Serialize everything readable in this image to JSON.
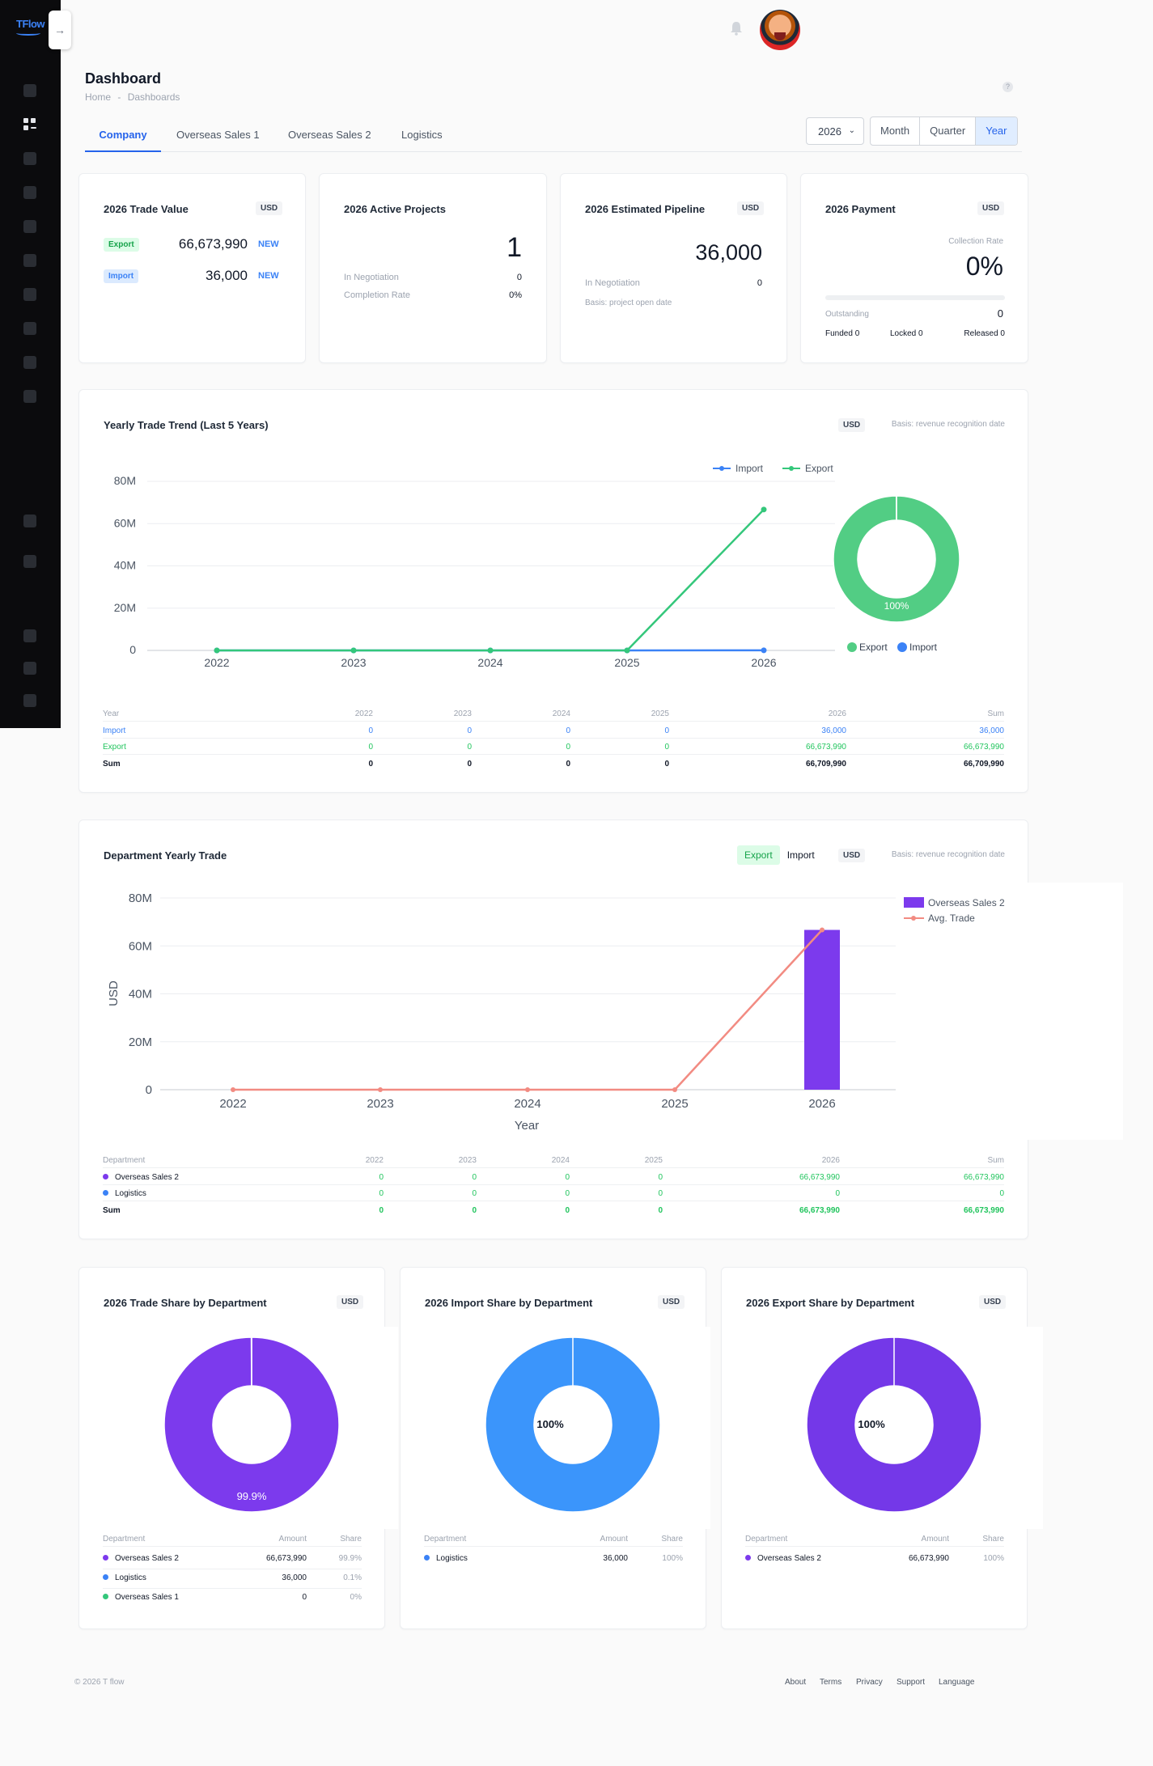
{
  "app": {
    "logo": "TFlow",
    "toggle_icon": "arrow-right-icon"
  },
  "header": {
    "title": "Dashboard",
    "breadcrumb": [
      "Home",
      "Dashboards"
    ]
  },
  "tabs": [
    "Company",
    "Overseas Sales 1",
    "Overseas Sales 2",
    "Logistics"
  ],
  "controls": {
    "year": "2026",
    "periods": [
      "Month",
      "Quarter",
      "Year"
    ],
    "selected_period": "Year"
  },
  "cards": {
    "trade_value": {
      "title": "2026 Trade Value",
      "currency": "USD",
      "rows": [
        {
          "label": "Export",
          "value": "66,673,990",
          "tag": "NEW"
        },
        {
          "label": "Import",
          "value": "36,000",
          "tag": "NEW"
        }
      ]
    },
    "active_projects": {
      "title": "2026 Active Projects",
      "count": "1",
      "rows": [
        {
          "label": "In Negotiation",
          "value": "0"
        },
        {
          "label": "Completion Rate",
          "value": "0%"
        }
      ]
    },
    "pipeline": {
      "title": "2026 Estimated Pipeline",
      "currency": "USD",
      "value": "36,000",
      "row_label": "In Negotiation",
      "row_value": "0",
      "note": "Basis: project open date"
    },
    "payment": {
      "title": "2026 Payment",
      "currency": "USD",
      "rate_label": "Collection Rate",
      "rate": "0%",
      "outstanding_label": "Outstanding",
      "outstanding": "0",
      "funded": "Funded 0",
      "locked": "Locked 0",
      "released": "Released 0"
    }
  },
  "trend": {
    "title": "Yearly Trade Trend (Last 5 Years)",
    "currency": "USD",
    "basis": "Basis: revenue recognition date",
    "table": {
      "headers": [
        "Year",
        "2022",
        "2023",
        "2024",
        "2025",
        "2026",
        "Sum"
      ],
      "rows": [
        {
          "label": "Import",
          "values": [
            "0",
            "0",
            "0",
            "0",
            "36,000",
            "36,000"
          ]
        },
        {
          "label": "Export",
          "values": [
            "0",
            "0",
            "0",
            "0",
            "66,673,990",
            "66,673,990"
          ]
        },
        {
          "label": "Sum",
          "values": [
            "0",
            "0",
            "0",
            "0",
            "66,709,990",
            "66,709,990"
          ]
        }
      ]
    }
  },
  "dept": {
    "title": "Department Yearly Trade",
    "toggle": [
      "Export",
      "Import"
    ],
    "currency": "USD",
    "basis": "Basis: revenue recognition date",
    "table": {
      "headers": [
        "Department",
        "2022",
        "2023",
        "2024",
        "2025",
        "2026",
        "Sum"
      ],
      "rows": [
        {
          "label": "Overseas Sales 2",
          "values": [
            "0",
            "0",
            "0",
            "0",
            "66,673,990",
            "66,673,990"
          ]
        },
        {
          "label": "Logistics",
          "values": [
            "0",
            "0",
            "0",
            "0",
            "0",
            "0"
          ]
        },
        {
          "label": "Sum",
          "values": [
            "0",
            "0",
            "0",
            "0",
            "66,673,990",
            "66,673,990"
          ]
        }
      ]
    }
  },
  "shares": [
    {
      "title": "2026 Trade Share by Department",
      "currency": "USD",
      "headers": [
        "Department",
        "Amount",
        "Share"
      ],
      "rows": [
        {
          "name": "Overseas Sales 2",
          "amount": "66,673,990",
          "share": "99.9%",
          "color": "#7c3aed"
        },
        {
          "name": "Logistics",
          "amount": "36,000",
          "share": "0.1%",
          "color": "#3b82f6"
        },
        {
          "name": "Overseas Sales 1",
          "amount": "0",
          "share": "0%",
          "color": "#34c77b"
        }
      ]
    },
    {
      "title": "2026 Import Share by Department",
      "currency": "USD",
      "headers": [
        "Department",
        "Amount",
        "Share"
      ],
      "rows": [
        {
          "name": "Logistics",
          "amount": "36,000",
          "share": "100%",
          "color": "#3b82f6"
        }
      ]
    },
    {
      "title": "2026 Export Share by Department",
      "currency": "USD",
      "headers": [
        "Department",
        "Amount",
        "Share"
      ],
      "rows": [
        {
          "name": "Overseas Sales 2",
          "amount": "66,673,990",
          "share": "100%",
          "color": "#7c3aed"
        }
      ]
    }
  ],
  "chart_data": [
    {
      "type": "line",
      "x": [
        "2022",
        "2023",
        "2024",
        "2025",
        "2026"
      ],
      "ylim": [
        0,
        80000000
      ],
      "yticks": [
        "0",
        "20M",
        "40M",
        "60M",
        "80M"
      ],
      "legend": "top-right",
      "series": [
        {
          "name": "Import",
          "values": [
            0,
            0,
            0,
            0,
            36000
          ],
          "color": "#3b82f6"
        },
        {
          "name": "Export",
          "values": [
            0,
            0,
            0,
            0,
            66673990
          ],
          "color": "#34c77b"
        }
      ]
    },
    {
      "type": "pie",
      "labels": [
        "Export",
        "Import"
      ],
      "values": [
        66673990,
        36000
      ],
      "colors": [
        "#52cd84",
        "#3b82f6"
      ],
      "center_label": "100%"
    },
    {
      "type": "bar",
      "categories": [
        "2022",
        "2023",
        "2024",
        "2025",
        "2026"
      ],
      "xlabel": "Year",
      "ylabel": "USD",
      "ylim": [
        0,
        80000000
      ],
      "yticks": [
        "0",
        "20M",
        "40M",
        "60M",
        "80M"
      ],
      "legend": "right",
      "series": [
        {
          "name": "Overseas Sales 2",
          "type": "bar",
          "values": [
            0,
            0,
            0,
            0,
            66673990
          ],
          "color": "#7c3aed"
        },
        {
          "name": "Avg. Trade",
          "type": "line",
          "values": [
            0,
            0,
            0,
            0,
            66673990
          ],
          "color": "#f28b82"
        }
      ]
    },
    {
      "type": "pie",
      "labels": [
        "Overseas Sales 2",
        "Logistics"
      ],
      "values": [
        66673990,
        36000
      ],
      "colors": [
        "#7c3aed",
        "#3b82f6"
      ],
      "slice_label": "99.9%"
    },
    {
      "type": "pie",
      "labels": [
        "Logistics"
      ],
      "values": [
        36000
      ],
      "colors": [
        "#3b95fb"
      ],
      "slice_label": "100%"
    },
    {
      "type": "pie",
      "labels": [
        "Overseas Sales 2"
      ],
      "values": [
        66673990
      ],
      "colors": [
        "#7438e8"
      ],
      "slice_label": "100%"
    }
  ],
  "footer": {
    "copyright": "© 2026 T flow",
    "links": [
      "About",
      "Terms",
      "Privacy",
      "Support",
      "Language"
    ]
  }
}
